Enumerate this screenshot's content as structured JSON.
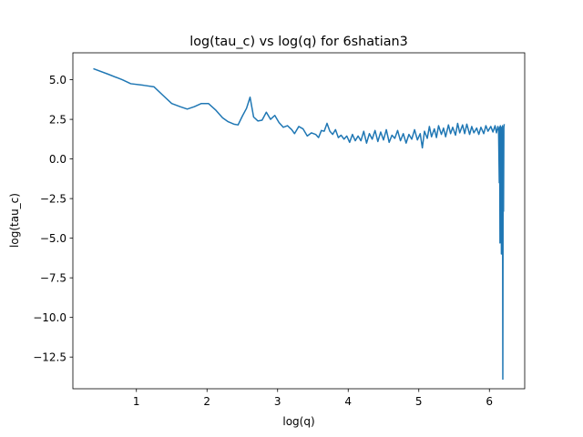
{
  "chart_data": {
    "type": "line",
    "title": "log(tau_c) vs log(q) for 6shatian3",
    "xlabel": "log(q)",
    "ylabel": "log(tau_c)",
    "xlim": [
      0.1,
      6.5
    ],
    "ylim": [
      -14.5,
      6.7
    ],
    "xticks": [
      {
        "value": 1,
        "label": "1"
      },
      {
        "value": 2,
        "label": "2"
      },
      {
        "value": 3,
        "label": "3"
      },
      {
        "value": 4,
        "label": "4"
      },
      {
        "value": 5,
        "label": "5"
      },
      {
        "value": 6,
        "label": "6"
      }
    ],
    "yticks": [
      {
        "value": 5.0,
        "label": "5.0"
      },
      {
        "value": 2.5,
        "label": "2.5"
      },
      {
        "value": 0.0,
        "label": "0.0"
      },
      {
        "value": -2.5,
        "label": "−2.5"
      },
      {
        "value": -5.0,
        "label": "−5.0"
      },
      {
        "value": -7.5,
        "label": "−7.5"
      },
      {
        "value": -10.0,
        "label": "−10.0"
      },
      {
        "value": -12.5,
        "label": "−12.5"
      }
    ],
    "grid": false,
    "series": [
      {
        "color": "#1f77b4",
        "points": [
          [
            0.39,
            5.7
          ],
          [
            0.6,
            5.35
          ],
          [
            0.8,
            5.0
          ],
          [
            0.92,
            4.75
          ],
          [
            1.1,
            4.65
          ],
          [
            1.25,
            4.55
          ],
          [
            1.38,
            4.0
          ],
          [
            1.5,
            3.5
          ],
          [
            1.62,
            3.3
          ],
          [
            1.72,
            3.15
          ],
          [
            1.82,
            3.3
          ],
          [
            1.92,
            3.5
          ],
          [
            2.02,
            3.5
          ],
          [
            2.12,
            3.1
          ],
          [
            2.22,
            2.6
          ],
          [
            2.3,
            2.35
          ],
          [
            2.38,
            2.2
          ],
          [
            2.44,
            2.15
          ],
          [
            2.5,
            2.7
          ],
          [
            2.56,
            3.2
          ],
          [
            2.61,
            3.9
          ],
          [
            2.66,
            2.65
          ],
          [
            2.72,
            2.4
          ],
          [
            2.78,
            2.45
          ],
          [
            2.84,
            2.95
          ],
          [
            2.9,
            2.5
          ],
          [
            2.96,
            2.75
          ],
          [
            3.02,
            2.3
          ],
          [
            3.08,
            2.0
          ],
          [
            3.14,
            2.1
          ],
          [
            3.2,
            1.85
          ],
          [
            3.24,
            1.6
          ],
          [
            3.3,
            2.05
          ],
          [
            3.36,
            1.9
          ],
          [
            3.42,
            1.45
          ],
          [
            3.48,
            1.65
          ],
          [
            3.54,
            1.55
          ],
          [
            3.58,
            1.35
          ],
          [
            3.62,
            1.8
          ],
          [
            3.66,
            1.75
          ],
          [
            3.7,
            2.25
          ],
          [
            3.74,
            1.75
          ],
          [
            3.78,
            1.55
          ],
          [
            3.82,
            1.85
          ],
          [
            3.86,
            1.35
          ],
          [
            3.9,
            1.5
          ],
          [
            3.94,
            1.25
          ],
          [
            3.98,
            1.45
          ],
          [
            4.02,
            1.05
          ],
          [
            4.06,
            1.55
          ],
          [
            4.1,
            1.15
          ],
          [
            4.14,
            1.45
          ],
          [
            4.18,
            1.15
          ],
          [
            4.22,
            1.75
          ],
          [
            4.26,
            1.0
          ],
          [
            4.3,
            1.6
          ],
          [
            4.34,
            1.25
          ],
          [
            4.38,
            1.8
          ],
          [
            4.42,
            1.1
          ],
          [
            4.46,
            1.7
          ],
          [
            4.5,
            1.2
          ],
          [
            4.54,
            1.85
          ],
          [
            4.58,
            1.05
          ],
          [
            4.62,
            1.5
          ],
          [
            4.66,
            1.3
          ],
          [
            4.7,
            1.8
          ],
          [
            4.74,
            1.15
          ],
          [
            4.78,
            1.6
          ],
          [
            4.82,
            1.0
          ],
          [
            4.86,
            1.55
          ],
          [
            4.9,
            1.25
          ],
          [
            4.94,
            1.85
          ],
          [
            4.98,
            1.2
          ],
          [
            5.02,
            1.6
          ],
          [
            5.05,
            0.7
          ],
          [
            5.08,
            1.75
          ],
          [
            5.12,
            1.3
          ],
          [
            5.15,
            2.05
          ],
          [
            5.18,
            1.4
          ],
          [
            5.22,
            1.9
          ],
          [
            5.25,
            1.35
          ],
          [
            5.28,
            2.1
          ],
          [
            5.32,
            1.55
          ],
          [
            5.35,
            1.95
          ],
          [
            5.38,
            1.4
          ],
          [
            5.42,
            2.15
          ],
          [
            5.45,
            1.6
          ],
          [
            5.48,
            2.0
          ],
          [
            5.52,
            1.5
          ],
          [
            5.55,
            2.25
          ],
          [
            5.58,
            1.65
          ],
          [
            5.62,
            2.15
          ],
          [
            5.65,
            1.6
          ],
          [
            5.68,
            2.2
          ],
          [
            5.72,
            1.55
          ],
          [
            5.75,
            2.05
          ],
          [
            5.78,
            1.65
          ],
          [
            5.82,
            1.95
          ],
          [
            5.85,
            1.55
          ],
          [
            5.88,
            2.0
          ],
          [
            5.92,
            1.6
          ],
          [
            5.95,
            2.1
          ],
          [
            5.98,
            1.75
          ],
          [
            6.02,
            2.05
          ],
          [
            6.05,
            1.7
          ],
          [
            6.08,
            2.1
          ],
          [
            6.1,
            1.65
          ],
          [
            6.12,
            2.05
          ],
          [
            6.13,
            1.8
          ],
          [
            6.14,
            -1.5
          ],
          [
            6.145,
            2.0
          ],
          [
            6.15,
            -5.3
          ],
          [
            6.155,
            2.1
          ],
          [
            6.16,
            -3.2
          ],
          [
            6.165,
            1.9
          ],
          [
            6.17,
            -6.0
          ],
          [
            6.175,
            2.0
          ],
          [
            6.18,
            -4.5
          ],
          [
            6.185,
            2.1
          ],
          [
            6.19,
            -13.9
          ],
          [
            6.195,
            1.5
          ],
          [
            6.2,
            -3.3
          ],
          [
            6.205,
            2.0
          ],
          [
            6.21,
            2.2
          ]
        ]
      }
    ]
  }
}
